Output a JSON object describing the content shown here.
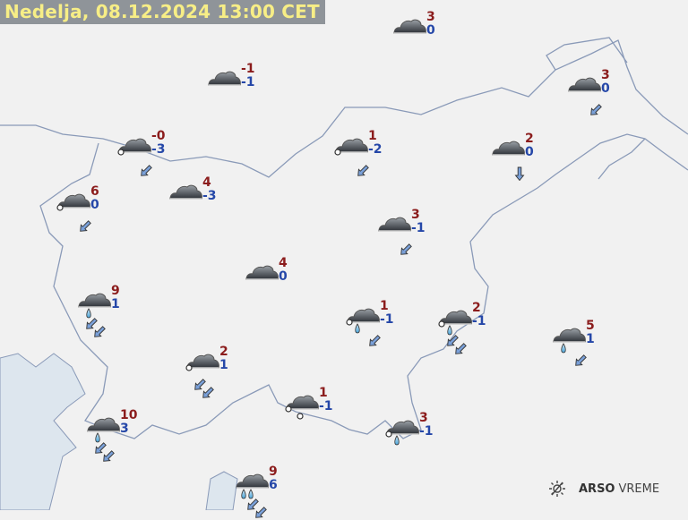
{
  "header": {
    "title": "Nedelja, 08.12.2024 13:00 CET"
  },
  "branding": {
    "brand": "ARSO",
    "product": "VREME",
    "icon": "sun-haze-icon"
  },
  "colors": {
    "max_temp": "#8b1c1c",
    "min_temp": "#2547a8",
    "title_bg": "#8f9499",
    "title_text": "#f7ee86",
    "border": "#8a9ab8",
    "sea": "#dde6ee"
  },
  "stations": [
    {
      "icon": "overcast",
      "max": "3",
      "min": "0",
      "wind": {
        "arrows": 0,
        "dir": ""
      }
    },
    {
      "icon": "overcast",
      "max": "-1",
      "min": "-1",
      "wind": {
        "arrows": 0,
        "dir": ""
      }
    },
    {
      "icon": "overcast",
      "max": "3",
      "min": "0",
      "wind": {
        "arrows": 1,
        "dir": "SW"
      }
    },
    {
      "icon": "overcast-fog",
      "max": "-0",
      "min": "-3",
      "wind": {
        "arrows": 1,
        "dir": "SW"
      }
    },
    {
      "icon": "overcast-fog",
      "max": "1",
      "min": "-2",
      "wind": {
        "arrows": 1,
        "dir": "SW"
      }
    },
    {
      "icon": "overcast",
      "max": "2",
      "min": "0",
      "wind": {
        "arrows": 1,
        "dir": "S"
      }
    },
    {
      "icon": "overcast",
      "max": "4",
      "min": "-3",
      "wind": {
        "arrows": 0,
        "dir": ""
      }
    },
    {
      "icon": "overcast-fog",
      "max": "6",
      "min": "0",
      "wind": {
        "arrows": 1,
        "dir": "SW"
      }
    },
    {
      "icon": "overcast",
      "max": "3",
      "min": "-1",
      "wind": {
        "arrows": 1,
        "dir": "SW"
      }
    },
    {
      "icon": "overcast",
      "max": "4",
      "min": "0",
      "wind": {
        "arrows": 0,
        "dir": ""
      }
    },
    {
      "icon": "overcast-rain",
      "max": "9",
      "min": "1",
      "wind": {
        "arrows": 2,
        "dir": "SW"
      }
    },
    {
      "icon": "overcast-fog-rain",
      "max": "1",
      "min": "-1",
      "wind": {
        "arrows": 1,
        "dir": "SW"
      }
    },
    {
      "icon": "overcast-fog-rain",
      "max": "2",
      "min": "-1",
      "wind": {
        "arrows": 2,
        "dir": "SW"
      }
    },
    {
      "icon": "overcast-rain",
      "max": "5",
      "min": "1",
      "wind": {
        "arrows": 1,
        "dir": "SW"
      }
    },
    {
      "icon": "overcast-fog",
      "max": "2",
      "min": "1",
      "wind": {
        "arrows": 2,
        "dir": "SW"
      }
    },
    {
      "icon": "overcast-fog-hail",
      "max": "1",
      "min": "-1",
      "wind": {
        "arrows": 0,
        "dir": ""
      }
    },
    {
      "icon": "overcast-rain",
      "max": "10",
      "min": "3",
      "wind": {
        "arrows": 2,
        "dir": "SW"
      }
    },
    {
      "icon": "overcast-fog-rain",
      "max": "3",
      "min": "-1",
      "wind": {
        "arrows": 0,
        "dir": ""
      }
    },
    {
      "icon": "overcast-heavy-rain",
      "max": "9",
      "min": "6",
      "wind": {
        "arrows": 2,
        "dir": "SW"
      }
    }
  ]
}
